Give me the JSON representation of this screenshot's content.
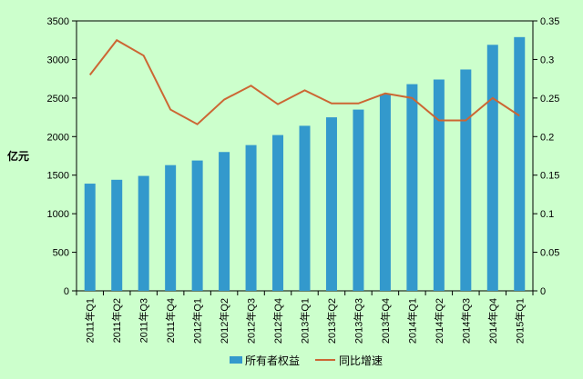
{
  "chart_data": {
    "type": "bar",
    "categories": [
      "2011年Q1",
      "2011年Q2",
      "2011年Q3",
      "2011年Q4",
      "2012年Q1",
      "2012年Q2",
      "2012年Q3",
      "2012年Q4",
      "2013年Q1",
      "2013年Q2",
      "2013年Q3",
      "2013年Q4",
      "2014年Q1",
      "2014年Q2",
      "2014年Q3",
      "2014年Q4",
      "2015年Q1"
    ],
    "series": [
      {
        "name": "所有者权益",
        "type": "bar",
        "axis": "left",
        "color": "#3399cc",
        "values": [
          1390,
          1440,
          1490,
          1630,
          1690,
          1800,
          1890,
          2020,
          2140,
          2250,
          2350,
          2550,
          2680,
          2740,
          2870,
          3190,
          3290
        ]
      },
      {
        "name": "同比增速",
        "type": "line",
        "axis": "right",
        "color": "#cc6633",
        "values": [
          0.28,
          0.325,
          0.305,
          0.235,
          0.216,
          0.248,
          0.266,
          0.242,
          0.26,
          0.243,
          0.243,
          0.256,
          0.25,
          0.221,
          0.221,
          0.25,
          0.227
        ]
      }
    ],
    "ylabel": "亿元",
    "ylim": [
      0,
      3500
    ],
    "yticks": [
      "0",
      "500",
      "1000",
      "1500",
      "2000",
      "2500",
      "3000",
      "3500"
    ],
    "y2lim": [
      0,
      0.35
    ],
    "y2ticks": [
      "0",
      "0.05",
      "0.1",
      "0.15",
      "0.2",
      "0.25",
      "0.3",
      "0.35"
    ],
    "legend_position": "bottom",
    "grid": false
  }
}
